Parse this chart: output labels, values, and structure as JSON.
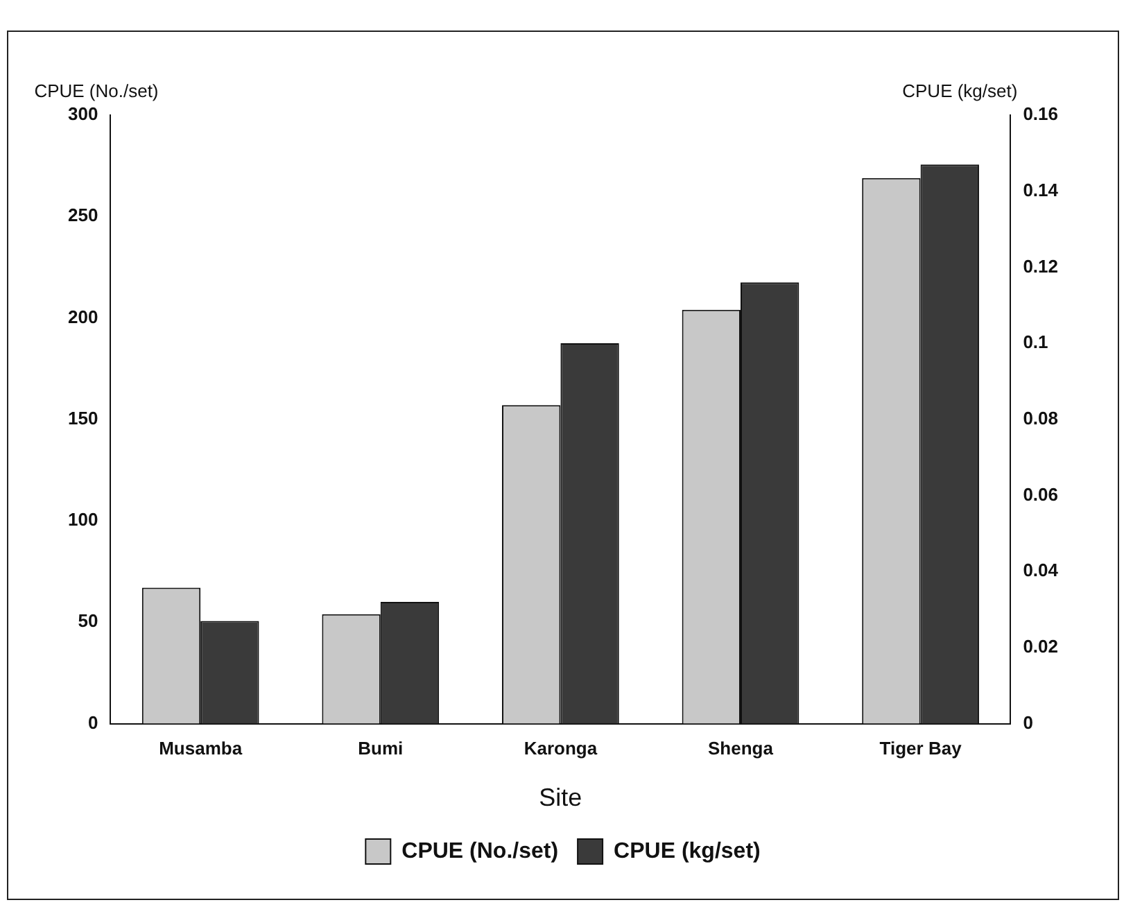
{
  "chart_data": {
    "type": "bar",
    "xlabel": "Site",
    "ylabel": "CPUE (No./set)",
    "y2label": "CPUE (kg/set)",
    "categories": [
      "Musamba",
      "Bumi",
      "Karonga",
      "Shenga",
      "Tiger Bay"
    ],
    "series": [
      {
        "name": "CPUE (No./set)",
        "color": "#c8c8c8",
        "values": [
          67,
          54,
          157,
          204,
          269
        ]
      },
      {
        "name": "CPUE (kg/set)",
        "color": "#3a3a3a",
        "axis": "y2",
        "values": [
          0.027,
          0.032,
          0.1,
          0.116,
          0.147
        ]
      }
    ],
    "ylim": [
      0,
      300
    ],
    "yticks": [
      0,
      50,
      100,
      150,
      200,
      250,
      300
    ],
    "y2lim": [
      0,
      0.16
    ],
    "y2ticks": [
      0,
      0.02,
      0.04,
      0.06,
      0.08,
      0.1,
      0.12,
      0.14,
      0.16
    ],
    "grid": false,
    "legend": "bottom"
  }
}
